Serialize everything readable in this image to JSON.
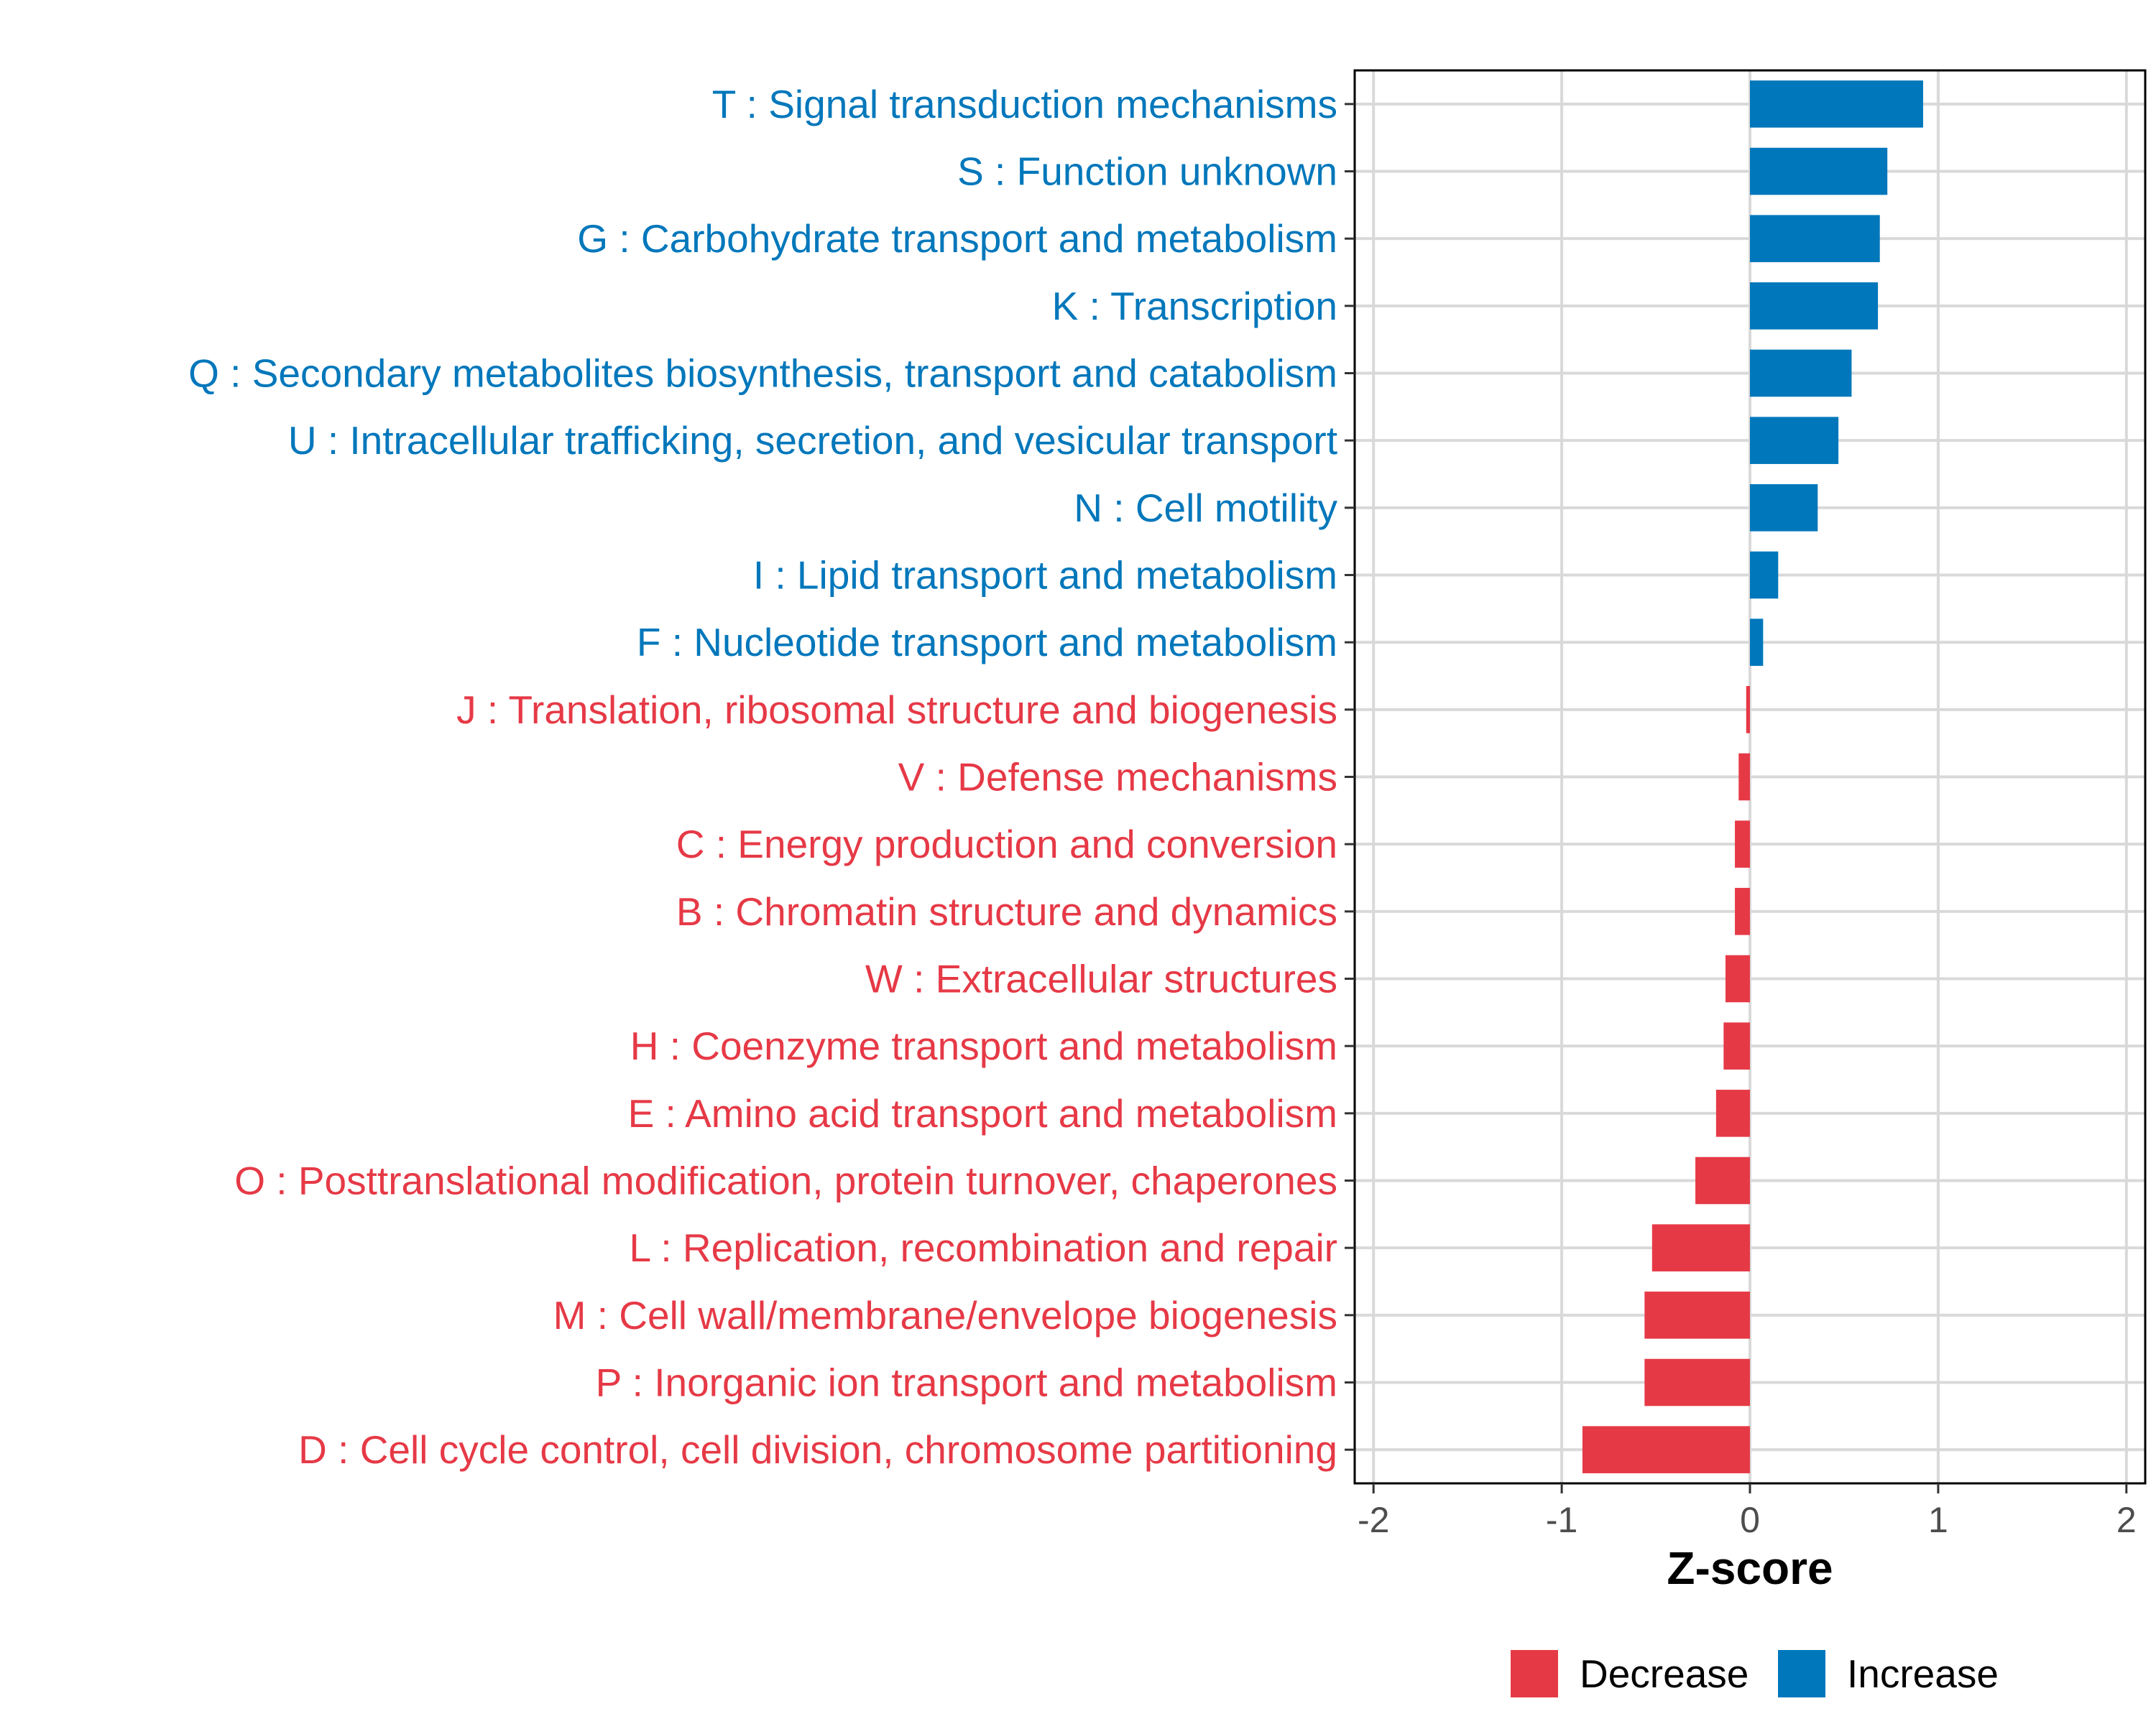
{
  "chart_data": {
    "type": "bar",
    "orientation": "horizontal",
    "xlabel": "Z-score",
    "ylabel": "",
    "xlim": [
      -2.1,
      2.1
    ],
    "xticks": [
      -2,
      -1,
      0,
      1,
      2
    ],
    "xtick_labels": [
      "-2",
      "-1",
      "0",
      "1",
      "2"
    ],
    "grid": true,
    "legend_position": "bottom",
    "colors": {
      "Decrease": "#E63946",
      "Increase": "#0077BB"
    },
    "legend": [
      {
        "label": "Decrease",
        "color": "#E63946"
      },
      {
        "label": "Increase",
        "color": "#0077BB"
      }
    ],
    "categories": [
      "T : Signal transduction mechanisms",
      "S : Function unknown",
      "G : Carbohydrate transport and metabolism",
      "K : Transcription",
      "Q : Secondary metabolites biosynthesis, transport and catabolism",
      "U : Intracellular trafficking, secretion, and vesicular transport",
      "N : Cell motility",
      "I : Lipid transport and metabolism",
      "F : Nucleotide transport and metabolism",
      "J : Translation, ribosomal structure and biogenesis",
      "V : Defense mechanisms",
      "C : Energy production and conversion",
      "B : Chromatin structure and dynamics",
      "W : Extracellular structures",
      "H : Coenzyme transport and metabolism",
      "E : Amino acid transport and metabolism",
      "O : Posttranslational modification, protein turnover, chaperones",
      "L : Replication, recombination and repair",
      "M : Cell wall/membrane/envelope biogenesis",
      "P : Inorganic ion transport and metabolism",
      "D : Cell cycle control, cell division, chromosome partitioning"
    ],
    "values": [
      0.92,
      0.73,
      0.69,
      0.68,
      0.54,
      0.47,
      0.36,
      0.15,
      0.07,
      -0.02,
      -0.06,
      -0.08,
      -0.08,
      -0.13,
      -0.14,
      -0.18,
      -0.29,
      -0.52,
      -0.56,
      -0.56,
      -0.89
    ],
    "groups": [
      "Increase",
      "Increase",
      "Increase",
      "Increase",
      "Increase",
      "Increase",
      "Increase",
      "Increase",
      "Increase",
      "Decrease",
      "Decrease",
      "Decrease",
      "Decrease",
      "Decrease",
      "Decrease",
      "Decrease",
      "Decrease",
      "Decrease",
      "Decrease",
      "Decrease",
      "Decrease"
    ]
  }
}
